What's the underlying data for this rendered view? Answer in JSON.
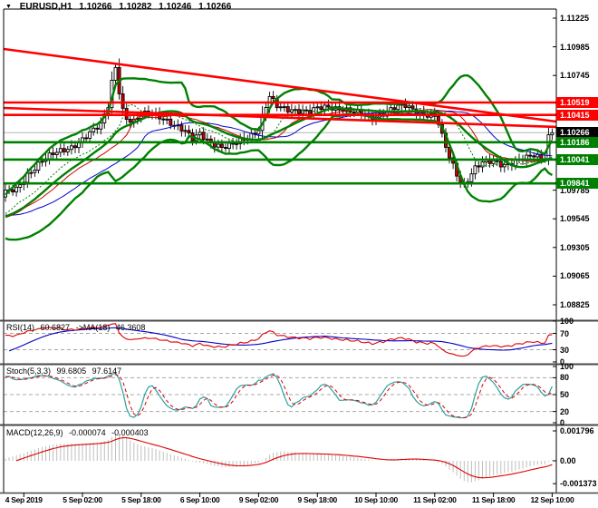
{
  "window": {
    "dropdown_icon": "▼",
    "symbol": "EURUSD,H1",
    "ohlc": {
      "open": "1.10266",
      "high": "1.10282",
      "low": "1.10246",
      "close": "1.10266"
    }
  },
  "colors": {
    "background": "#FFFFFF",
    "bull": "#FFFFFF",
    "bear": "#D40000",
    "candle_outline": "#000000",
    "bollinger": "#008000",
    "support": "#008000",
    "resistance": "#FF0000",
    "trend": "#FF0000",
    "current_price_line": "#B4B4B4",
    "current_badge": "#000000",
    "alligator_jaw": "#0000CD",
    "alligator_teeth": "#CC0000",
    "alligator_lips": "#008000",
    "rsi_line": "#E00000",
    "rsi_ma": "#0000C8",
    "stoch_main": "#2CA0A0",
    "stoch_signal": "#DD0000",
    "macd_histogram": "#BEBEBE",
    "macd_signal": "#DD0000",
    "level_dash": "#A8A8A8",
    "separator": "#484848",
    "axis_line": "#000000"
  },
  "price_axis": {
    "ticks": [
      {
        "text": "1.11225",
        "value": 1.11225
      },
      {
        "text": "1.10985",
        "value": 1.10985
      },
      {
        "text": "1.10745",
        "value": 1.10745
      },
      {
        "text": "1.09785",
        "value": 1.09785
      },
      {
        "text": "1.09545",
        "value": 1.09545
      },
      {
        "text": "1.09305",
        "value": 1.09305
      },
      {
        "text": "1.09065",
        "value": 1.09065
      },
      {
        "text": "1.08825",
        "value": 1.08825
      }
    ],
    "badges": [
      {
        "text": "1.10519",
        "value": 1.10519,
        "kind": "resistance"
      },
      {
        "text": "1.10415",
        "value": 1.10415,
        "kind": "resistance"
      },
      {
        "text": "1.10266",
        "value": 1.10266,
        "kind": "current"
      },
      {
        "text": "1.10186",
        "value": 1.10186,
        "kind": "support"
      },
      {
        "text": "1.10041",
        "value": 1.10041,
        "kind": "support"
      },
      {
        "text": "1.09841",
        "value": 1.09841,
        "kind": "support"
      }
    ]
  },
  "time_axis": {
    "labels": [
      {
        "text": "4 Sep 2019",
        "bar": 5
      },
      {
        "text": "5 Sep 02:00",
        "bar": 21
      },
      {
        "text": "5 Sep 18:00",
        "bar": 37
      },
      {
        "text": "6 Sep 10:00",
        "bar": 53
      },
      {
        "text": "9 Sep 02:00",
        "bar": 69
      },
      {
        "text": "9 Sep 18:00",
        "bar": 85
      },
      {
        "text": "10 Sep 10:00",
        "bar": 101
      },
      {
        "text": "11 Sep 02:00",
        "bar": 117
      },
      {
        "text": "11 Sep 18:00",
        "bar": 133
      },
      {
        "text": "12 Sep 10:00",
        "bar": 149
      }
    ]
  },
  "indicators": {
    "rsi": {
      "name": "RSI(14)",
      "value": "60.6827",
      "ma_name": "->MA(18)",
      "ma_value": "46.3608",
      "ticks": [
        100,
        70,
        30,
        0
      ],
      "levels": [
        70,
        30
      ],
      "period": 14,
      "ma_period": 18
    },
    "stoch": {
      "name": "Stoch(5,3,3)",
      "value_k": "99.6805",
      "value_d": "97.6147",
      "ticks": [
        100,
        80,
        50,
        20,
        0
      ],
      "levels": [
        80,
        50,
        20
      ],
      "k_period": 5,
      "slowing": 3,
      "d_period": 3
    },
    "macd": {
      "name": "MACD(12,26,9)",
      "value_main": "-0.000074",
      "value_signal": "-0.000403",
      "ticks": [
        {
          "text": "0.001796",
          "value": 0.001796
        },
        {
          "text": "0.00",
          "value": 0
        },
        {
          "text": "-0.001373",
          "value": -0.001373
        }
      ],
      "fast": 12,
      "slow": 26,
      "signal": 9
    }
  },
  "chart_data": {
    "type": "candlestick",
    "symbol": "EURUSD",
    "timeframe": "H1",
    "price_range": [
      1.08825,
      1.11225
    ],
    "current_price": 1.10266,
    "bars_visible": 150,
    "resistance_lines": [
      1.10519,
      1.10415
    ],
    "support_lines": [
      1.10186,
      1.10041,
      1.09841
    ],
    "trend_lines": [
      {
        "price_left": 1.10967,
        "price_right": 1.10359
      },
      {
        "price_left": 1.10473,
        "price_right": 1.10314
      }
    ],
    "bollinger": {
      "period": 20,
      "deviation": 2
    },
    "moving_averages": [
      {
        "type": "smma",
        "period": 13,
        "shift": 8,
        "role": "jaw"
      },
      {
        "type": "smma",
        "period": 8,
        "shift": 5,
        "role": "teeth"
      },
      {
        "type": "smma",
        "period": 5,
        "shift": 3,
        "role": "lips"
      }
    ],
    "price_path": [
      [
        0,
        1.0976
      ],
      [
        3,
        1.0979
      ],
      [
        6,
        1.0992
      ],
      [
        10,
        1.1003
      ],
      [
        14,
        1.101
      ],
      [
        18,
        1.1015
      ],
      [
        21,
        1.1021
      ],
      [
        24,
        1.1028
      ],
      [
        26,
        1.1033
      ],
      [
        28,
        1.105
      ],
      [
        29,
        1.107
      ],
      [
        30,
        1.1082
      ],
      [
        31,
        1.1062
      ],
      [
        32,
        1.1046
      ],
      [
        33,
        1.1038
      ],
      [
        35,
        1.1035
      ],
      [
        37,
        1.1041
      ],
      [
        40,
        1.1044
      ],
      [
        43,
        1.1039
      ],
      [
        46,
        1.1032
      ],
      [
        49,
        1.1027
      ],
      [
        51,
        1.1022
      ],
      [
        53,
        1.1027
      ],
      [
        56,
        1.1018
      ],
      [
        59,
        1.1013
      ],
      [
        61,
        1.1015
      ],
      [
        64,
        1.1021
      ],
      [
        67,
        1.1025
      ],
      [
        69,
        1.1029
      ],
      [
        71,
        1.1048
      ],
      [
        72,
        1.1056
      ],
      [
        74,
        1.1049
      ],
      [
        77,
        1.1047
      ],
      [
        80,
        1.1045
      ],
      [
        83,
        1.1043
      ],
      [
        85,
        1.1047
      ],
      [
        88,
        1.1049
      ],
      [
        91,
        1.1047
      ],
      [
        94,
        1.1044
      ],
      [
        97,
        1.1042
      ],
      [
        100,
        1.104
      ],
      [
        103,
        1.1043
      ],
      [
        106,
        1.1047
      ],
      [
        109,
        1.1049
      ],
      [
        112,
        1.1045
      ],
      [
        115,
        1.1042
      ],
      [
        117,
        1.104
      ],
      [
        118,
        1.1034
      ],
      [
        119,
        1.1023
      ],
      [
        120,
        1.1014
      ],
      [
        121,
        1.1006
      ],
      [
        122,
        1.0999
      ],
      [
        123,
        1.0992
      ],
      [
        124,
        1.0986
      ],
      [
        125,
        1.0983
      ],
      [
        126,
        1.0988
      ],
      [
        127,
        1.0993
      ],
      [
        128,
        1.0997
      ],
      [
        130,
        1.1001
      ],
      [
        133,
        1.1002
      ],
      [
        136,
        1.1
      ],
      [
        139,
        1.1003
      ],
      [
        142,
        1.1005
      ],
      [
        144,
        1.1007
      ],
      [
        146,
        1.1005
      ],
      [
        147,
        1.1007
      ],
      [
        148,
        1.1024
      ],
      [
        149,
        1.10266
      ]
    ]
  }
}
